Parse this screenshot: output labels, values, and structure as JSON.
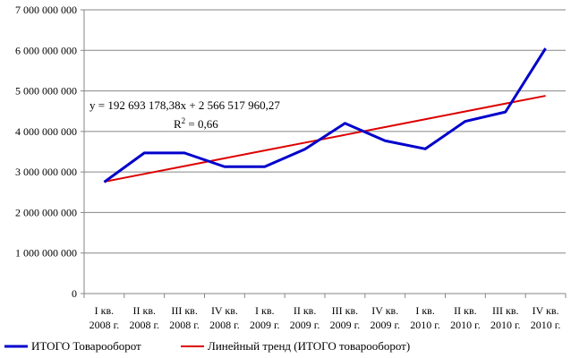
{
  "chart_data": {
    "type": "line",
    "title": "",
    "xlabel": "",
    "ylabel": "",
    "ylim": [
      0,
      7000000000
    ],
    "y_ticks": [
      {
        "value": 0,
        "label": "0"
      },
      {
        "value": 1000000000,
        "label": "1 000 000 000"
      },
      {
        "value": 2000000000,
        "label": "2 000 000 000"
      },
      {
        "value": 3000000000,
        "label": "3 000 000 000"
      },
      {
        "value": 4000000000,
        "label": "4 000 000 000"
      },
      {
        "value": 5000000000,
        "label": "5 000 000 000"
      },
      {
        "value": 6000000000,
        "label": "6 000 000 000"
      },
      {
        "value": 7000000000,
        "label": "7 000 000 000"
      }
    ],
    "categories": [
      {
        "line1": "I кв.",
        "line2": "2008 г."
      },
      {
        "line1": "II кв.",
        "line2": "2008 г."
      },
      {
        "line1": "III кв.",
        "line2": "2008 г."
      },
      {
        "line1": "IV кв.",
        "line2": "2008 г."
      },
      {
        "line1": "I кв.",
        "line2": "2009 г."
      },
      {
        "line1": "II кв.",
        "line2": "2009 г."
      },
      {
        "line1": "III кв.",
        "line2": "2009 г."
      },
      {
        "line1": "IV кв.",
        "line2": "2009 г."
      },
      {
        "line1": "I кв.",
        "line2": "2010 г."
      },
      {
        "line1": "II кв.",
        "line2": "2010 г."
      },
      {
        "line1": "III кв.",
        "line2": "2010 г."
      },
      {
        "line1": "IV кв.",
        "line2": "2010 г."
      }
    ],
    "series": [
      {
        "name": "ИТОГО Товарооборот",
        "color": "#0000cc",
        "values": [
          2750000000,
          3470000000,
          3470000000,
          3130000000,
          3130000000,
          3560000000,
          4200000000,
          3770000000,
          3570000000,
          4250000000,
          4480000000,
          6050000000
        ]
      },
      {
        "name": "Линейный тренд (ИТОГО товарооборот)",
        "color": "#dd0000",
        "values": [
          2759211139,
          2951904317,
          3144597496,
          3337290674,
          3529983853,
          3722677032,
          3915370210,
          4108063389,
          4300756567,
          4493449746,
          4686142924,
          4878836103
        ]
      }
    ],
    "annotation": {
      "equation": "y = 192 693 178,38x + 2 566 517 960,27",
      "r2_prefix": "R",
      "r2_exponent": "2",
      "r2_value": " = 0,66"
    },
    "legend_position": "bottom",
    "grid": true
  }
}
